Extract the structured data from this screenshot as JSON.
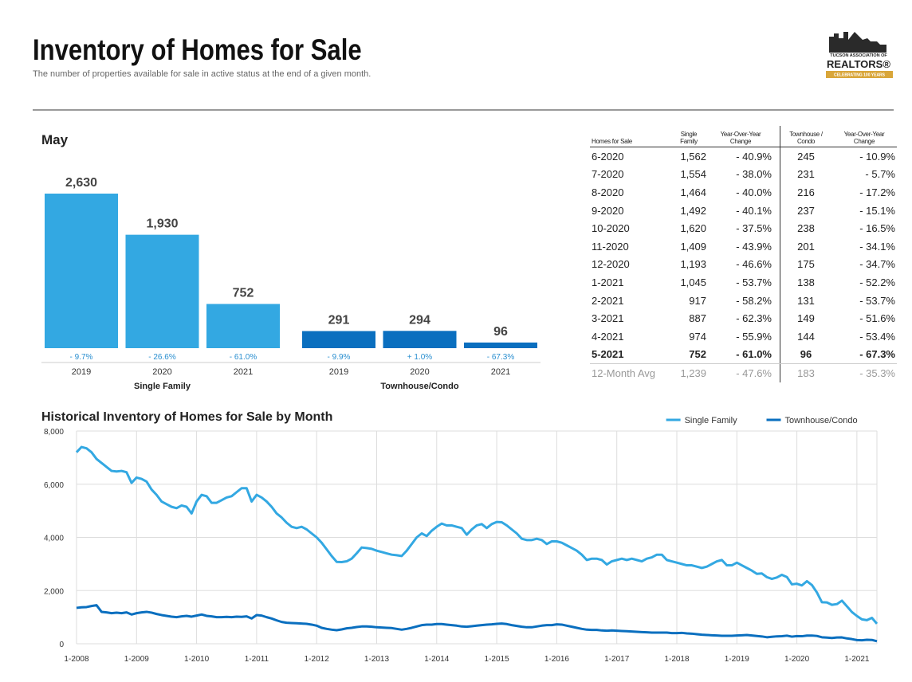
{
  "header": {
    "title": "Inventory of Homes for Sale",
    "subtitle": "The number of properties available for sale in active status at the end of a given month."
  },
  "logo": {
    "line1": "TUCSON ASSOCIATION OF",
    "line2": "REALTORS®",
    "line3": "CELEBRATING 100 YEARS"
  },
  "chart_data": [
    {
      "type": "bar",
      "title": "May",
      "groups": [
        {
          "name": "Single Family",
          "color": "#33a8e2",
          "categories": [
            "2019",
            "2020",
            "2021"
          ],
          "values": [
            2630,
            1930,
            752
          ],
          "value_labels": [
            "2,630",
            "1,930",
            "752"
          ],
          "changes": [
            "- 9.7%",
            "- 26.6%",
            "- 61.0%"
          ]
        },
        {
          "name": "Townhouse/Condo",
          "color": "#0a6fbf",
          "categories": [
            "2019",
            "2020",
            "2021"
          ],
          "values": [
            291,
            294,
            96
          ],
          "changes": [
            "- 9.9%",
            "+ 1.0%",
            "- 67.3%"
          ]
        }
      ]
    },
    {
      "type": "line",
      "title": "Historical Inventory of Homes for Sale by Month",
      "legend": "top-right",
      "grid": true,
      "ylim": [
        0,
        8000
      ],
      "yticks": [
        0,
        {
          "value": 2000,
          "label": "2,000"
        },
        {
          "value": 4000,
          "label": "4,000"
        },
        {
          "value": 6000,
          "label": "6,000"
        },
        {
          "value": 8000,
          "label": "8,000"
        }
      ],
      "xticks": [
        "1-2008",
        "1-2009",
        "1-2010",
        "1-2011",
        "1-2012",
        "1-2013",
        "1-2014",
        "1-2015",
        "1-2016",
        "1-2017",
        "1-2018",
        "1-2019",
        "1-2020",
        "1-2021"
      ],
      "x": [
        "1-2008",
        "2-2008",
        "3-2008",
        "4-2008",
        "5-2008",
        "6-2008",
        "7-2008",
        "8-2008",
        "9-2008",
        "10-2008",
        "11-2008",
        "12-2008",
        "1-2009",
        "2-2009",
        "3-2009",
        "4-2009",
        "5-2009",
        "6-2009",
        "7-2009",
        "8-2009",
        "9-2009",
        "10-2009",
        "11-2009",
        "12-2009",
        "1-2010",
        "2-2010",
        "3-2010",
        "4-2010",
        "5-2010",
        "6-2010",
        "7-2010",
        "8-2010",
        "9-2010",
        "10-2010",
        "11-2010",
        "12-2010",
        "1-2011",
        "2-2011",
        "3-2011",
        "4-2011",
        "5-2011",
        "6-2011",
        "7-2011",
        "8-2011",
        "9-2011",
        "10-2011",
        "11-2011",
        "12-2011",
        "1-2012",
        "2-2012",
        "3-2012",
        "4-2012",
        "5-2012",
        "6-2012",
        "7-2012",
        "8-2012",
        "9-2012",
        "10-2012",
        "11-2012",
        "12-2012",
        "1-2013",
        "2-2013",
        "3-2013",
        "4-2013",
        "5-2013",
        "6-2013",
        "7-2013",
        "8-2013",
        "9-2013",
        "10-2013",
        "11-2013",
        "12-2013",
        "1-2014",
        "2-2014",
        "3-2014",
        "4-2014",
        "5-2014",
        "6-2014",
        "7-2014",
        "8-2014",
        "9-2014",
        "10-2014",
        "11-2014",
        "12-2014",
        "1-2015",
        "2-2015",
        "3-2015",
        "4-2015",
        "5-2015",
        "6-2015",
        "7-2015",
        "8-2015",
        "9-2015",
        "10-2015",
        "11-2015",
        "12-2015",
        "1-2016",
        "2-2016",
        "3-2016",
        "4-2016",
        "5-2016",
        "6-2016",
        "7-2016",
        "8-2016",
        "9-2016",
        "10-2016",
        "11-2016",
        "12-2016",
        "1-2017",
        "2-2017",
        "3-2017",
        "4-2017",
        "5-2017",
        "6-2017",
        "7-2017",
        "8-2017",
        "9-2017",
        "10-2017",
        "11-2017",
        "12-2017",
        "1-2018",
        "2-2018",
        "3-2018",
        "4-2018",
        "5-2018",
        "6-2018",
        "7-2018",
        "8-2018",
        "9-2018",
        "10-2018",
        "11-2018",
        "12-2018",
        "1-2019",
        "2-2019",
        "3-2019",
        "4-2019",
        "5-2019",
        "6-2019",
        "7-2019",
        "8-2019",
        "9-2019",
        "10-2019",
        "11-2019",
        "12-2019",
        "1-2020",
        "2-2020",
        "3-2020",
        "4-2020",
        "5-2020",
        "6-2020",
        "7-2020",
        "8-2020",
        "9-2020",
        "10-2020",
        "11-2020",
        "12-2020",
        "1-2021",
        "2-2021",
        "3-2021",
        "4-2021",
        "5-2021"
      ],
      "series": [
        {
          "name": "Single Family",
          "color": "#33a8e2",
          "values": [
            7200,
            7400,
            7350,
            7200,
            6950,
            6800,
            6650,
            6500,
            6480,
            6500,
            6450,
            6050,
            6250,
            6200,
            6100,
            5800,
            5600,
            5350,
            5250,
            5150,
            5100,
            5200,
            5150,
            4900,
            5350,
            5600,
            5550,
            5300,
            5300,
            5400,
            5500,
            5550,
            5700,
            5850,
            5850,
            5350,
            5600,
            5500,
            5350,
            5150,
            4900,
            4750,
            4550,
            4400,
            4350,
            4400,
            4300,
            4150,
            4000,
            3800,
            3550,
            3300,
            3080,
            3070,
            3100,
            3200,
            3400,
            3620,
            3600,
            3570,
            3500,
            3450,
            3400,
            3350,
            3330,
            3300,
            3500,
            3750,
            4000,
            4150,
            4050,
            4250,
            4400,
            4520,
            4450,
            4450,
            4400,
            4350,
            4100,
            4300,
            4450,
            4500,
            4350,
            4500,
            4580,
            4570,
            4450,
            4300,
            4150,
            3950,
            3900,
            3900,
            3950,
            3900,
            3750,
            3850,
            3850,
            3800,
            3700,
            3600,
            3500,
            3350,
            3150,
            3200,
            3200,
            3150,
            2980,
            3100,
            3150,
            3200,
            3150,
            3200,
            3150,
            3100,
            3200,
            3250,
            3350,
            3350,
            3150,
            3100,
            3050,
            3000,
            2950,
            2950,
            2900,
            2850,
            2900,
            3000,
            3100,
            3150,
            2950,
            2950,
            3050,
            2950,
            2850,
            2750,
            2630,
            2643,
            2506,
            2440,
            2491,
            2592,
            2511,
            2234,
            2257,
            2194,
            2353,
            2209,
            1930,
            1562,
            1554,
            1464,
            1492,
            1620,
            1409,
            1193,
            1045,
            917,
            887,
            974,
            752
          ]
        },
        {
          "name": "Townhouse/Condo",
          "color": "#0a6fbf",
          "values": [
            1350,
            1370,
            1380,
            1420,
            1450,
            1200,
            1180,
            1150,
            1170,
            1150,
            1180,
            1100,
            1150,
            1180,
            1200,
            1170,
            1120,
            1080,
            1050,
            1020,
            1000,
            1030,
            1050,
            1020,
            1060,
            1100,
            1050,
            1030,
            1000,
            1000,
            1010,
            1000,
            1020,
            1010,
            1030,
            950,
            1080,
            1060,
            1000,
            950,
            880,
            820,
            790,
            780,
            770,
            760,
            750,
            720,
            680,
            600,
            560,
            530,
            510,
            540,
            580,
            600,
            630,
            650,
            650,
            640,
            620,
            610,
            600,
            590,
            560,
            530,
            560,
            600,
            650,
            700,
            720,
            720,
            740,
            740,
            720,
            700,
            680,
            650,
            640,
            660,
            680,
            700,
            720,
            730,
            750,
            760,
            740,
            700,
            670,
            640,
            620,
            620,
            650,
            680,
            700,
            700,
            730,
            720,
            680,
            640,
            600,
            560,
            530,
            520,
            520,
            500,
            490,
            500,
            490,
            480,
            470,
            460,
            450,
            440,
            430,
            420,
            420,
            420,
            420,
            400,
            400,
            410,
            390,
            380,
            360,
            340,
            330,
            320,
            310,
            300,
            300,
            300,
            310,
            320,
            330,
            310,
            291,
            275,
            245,
            261,
            279,
            285,
            305,
            268,
            289,
            283,
            308,
            309,
            294,
            245,
            231,
            216,
            237,
            238,
            201,
            175,
            138,
            131,
            149,
            144,
            96
          ]
        }
      ]
    }
  ],
  "table": {
    "columns": [
      "Homes for Sale",
      "Single Family",
      "Year-Over-Year Change",
      "Townhouse / Condo",
      "Year-Over-Year Change"
    ],
    "rows": [
      [
        "6-2020",
        "1,562",
        "- 40.9%",
        "245",
        "- 10.9%"
      ],
      [
        "7-2020",
        "1,554",
        "- 38.0%",
        "231",
        "- 5.7%"
      ],
      [
        "8-2020",
        "1,464",
        "- 40.0%",
        "216",
        "- 17.2%"
      ],
      [
        "9-2020",
        "1,492",
        "- 40.1%",
        "237",
        "- 15.1%"
      ],
      [
        "10-2020",
        "1,620",
        "- 37.5%",
        "238",
        "- 16.5%"
      ],
      [
        "11-2020",
        "1,409",
        "- 43.9%",
        "201",
        "- 34.1%"
      ],
      [
        "12-2020",
        "1,193",
        "- 46.6%",
        "175",
        "- 34.7%"
      ],
      [
        "1-2021",
        "1,045",
        "- 53.7%",
        "138",
        "- 52.2%"
      ],
      [
        "2-2021",
        "917",
        "- 58.2%",
        "131",
        "- 53.7%"
      ],
      [
        "3-2021",
        "887",
        "- 62.3%",
        "149",
        "- 51.6%"
      ],
      [
        "4-2021",
        "974",
        "- 55.9%",
        "144",
        "- 53.4%"
      ],
      [
        "5-2021",
        "752",
        "- 61.0%",
        "96",
        "- 67.3%"
      ]
    ],
    "footer": [
      "12-Month Avg",
      "1,239",
      "- 47.6%",
      "183",
      "- 35.3%"
    ]
  }
}
